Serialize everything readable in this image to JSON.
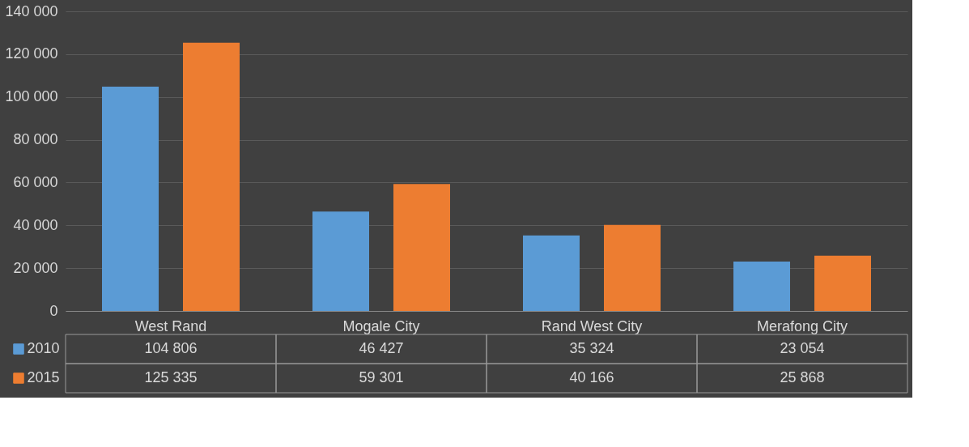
{
  "chart_data": {
    "type": "bar",
    "categories": [
      "West Rand",
      "Mogale City",
      "Rand West City",
      "Merafong City"
    ],
    "series": [
      {
        "name": "2010",
        "color": "#5b9bd5",
        "values": [
          104806,
          46427,
          35324,
          23054
        ],
        "value_labels": [
          "104 806",
          "46 427",
          "35 324",
          "23 054"
        ]
      },
      {
        "name": "2015",
        "color": "#ed7d31",
        "values": [
          125335,
          59301,
          40166,
          25868
        ],
        "value_labels": [
          "125 335",
          "59 301",
          "40 166",
          "25 868"
        ]
      }
    ],
    "ylim": [
      0,
      140000
    ],
    "yticks": [
      {
        "value": 0,
        "label": "0"
      },
      {
        "value": 20000,
        "label": "20 000"
      },
      {
        "value": 40000,
        "label": "40 000"
      },
      {
        "value": 60000,
        "label": "60 000"
      },
      {
        "value": 80000,
        "label": "80 000"
      },
      {
        "value": 100000,
        "label": "100 000"
      },
      {
        "value": 120000,
        "label": "120 000"
      },
      {
        "value": 140000,
        "label": "140 000"
      }
    ],
    "grid": "y",
    "legend": "bottom"
  }
}
